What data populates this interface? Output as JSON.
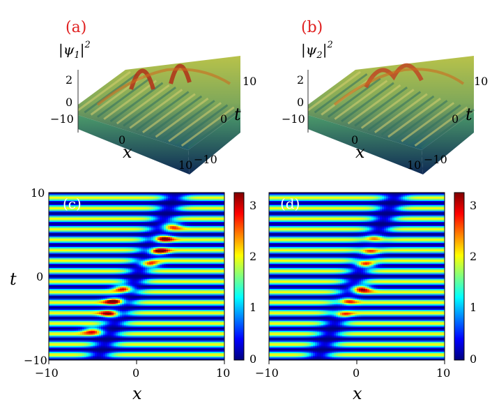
{
  "figure": {
    "panels": [
      {
        "label": "(a)",
        "type": "surface3d",
        "zlabel_main": "|ψ",
        "zlabel_sub": "1",
        "zlabel_tail": "|",
        "zlabel_sup": "2",
        "ticks": {
          "z": [
            "2",
            "0"
          ],
          "x": [
            "−10",
            "0",
            "10"
          ],
          "t": [
            "10",
            "0",
            "−10"
          ]
        },
        "xlabel": "x",
        "tlabel": "t"
      },
      {
        "label": "(b)",
        "type": "surface3d",
        "zlabel_main": "|ψ",
        "zlabel_sub": "2",
        "zlabel_tail": "|",
        "zlabel_sup": "2",
        "ticks": {
          "z": [
            "2",
            "0"
          ],
          "x": [
            "−10",
            "0",
            "10"
          ],
          "t": [
            "10",
            "0",
            "−10"
          ]
        },
        "xlabel": "x",
        "tlabel": "t"
      },
      {
        "label": "(c)",
        "type": "heatmap",
        "xlabel": "x",
        "ylabel": "t",
        "xticks": [
          "−10",
          "0",
          "10"
        ],
        "yticks": [
          "10",
          "0",
          "−10"
        ],
        "colorbar_ticks": [
          "3",
          "2",
          "1",
          "0"
        ]
      },
      {
        "label": "(d)",
        "type": "heatmap",
        "xlabel": "x",
        "xticks": [
          "−10",
          "0",
          "10"
        ],
        "colorbar_ticks": [
          "3",
          "2",
          "1",
          "0"
        ]
      }
    ]
  },
  "chart_data": [
    {
      "type": "heatmap",
      "title": "(c)",
      "xlabel": "x",
      "ylabel": "t",
      "xlim": [
        -10,
        10
      ],
      "ylim": [
        -10,
        10
      ],
      "colorbar_range": [
        0,
        3.2
      ],
      "colormap": "jet",
      "background_stripes": {
        "count": 16,
        "max_intensity": 2.0
      },
      "peaks": [
        {
          "x": 4.0,
          "t": 6.0,
          "v": 2.5
        },
        {
          "x": 3.0,
          "t": 4.5,
          "v": 3.2
        },
        {
          "x": 2.5,
          "t": 3.0,
          "v": 3.2
        },
        {
          "x": 1.5,
          "t": 1.5,
          "v": 3.0
        },
        {
          "x": -1.5,
          "t": -1.5,
          "v": 3.2
        },
        {
          "x": -2.5,
          "t": -3.0,
          "v": 3.2
        },
        {
          "x": -3.0,
          "t": -4.5,
          "v": 3.0
        },
        {
          "x": -5.0,
          "t": -6.5,
          "v": 2.5
        }
      ]
    },
    {
      "type": "heatmap",
      "title": "(d)",
      "xlabel": "x",
      "ylabel": "",
      "xlim": [
        -10,
        10
      ],
      "ylim": [
        -10,
        10
      ],
      "colorbar_range": [
        0,
        3.2
      ],
      "colormap": "jet",
      "background_stripes": {
        "count": 16,
        "max_intensity": 2.0
      },
      "peaks": [
        {
          "x": 2.0,
          "t": 4.5,
          "v": 2.8
        },
        {
          "x": 1.5,
          "t": 3.0,
          "v": 3.0
        },
        {
          "x": 1.0,
          "t": 1.5,
          "v": 3.2
        },
        {
          "x": 0.5,
          "t": -1.5,
          "v": 3.2
        },
        {
          "x": -1.0,
          "t": -3.0,
          "v": 3.0
        },
        {
          "x": -1.5,
          "t": -4.5,
          "v": 2.8
        }
      ]
    }
  ]
}
